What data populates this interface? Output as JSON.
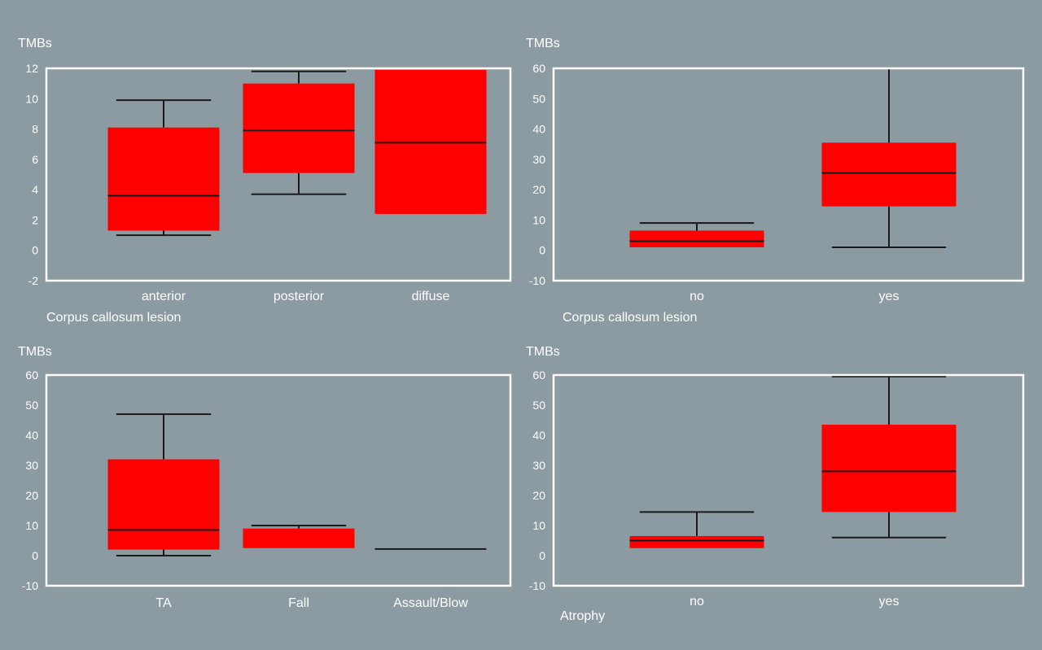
{
  "colors": {
    "background": "#8c9ba1",
    "box_fill": "#ff0000",
    "frame": "#ffffff",
    "text": "#ffffff",
    "lines": "#1a1a1a"
  },
  "chart_data": [
    {
      "type": "box",
      "title": "",
      "ylabel": "TMBs",
      "xlabel": "Corpus callosum lesion",
      "ylim": [
        -2,
        12
      ],
      "yticks": [
        -2,
        0,
        2,
        4,
        6,
        8,
        10,
        12
      ],
      "grid": false,
      "categories": [
        "anterior",
        "posterior",
        "diffuse"
      ],
      "boxes": [
        {
          "category": "anterior",
          "whisker_low": 1,
          "q1": 1.3,
          "median": 3.6,
          "q3": 8.1,
          "whisker_high": 9.9
        },
        {
          "category": "posterior",
          "whisker_low": 3.7,
          "q1": 5.1,
          "median": 7.9,
          "q3": 11,
          "whisker_high": 11.8
        },
        {
          "category": "diffuse",
          "whisker_low": null,
          "q1": 2.4,
          "median": 7.1,
          "q3": 11.9,
          "whisker_high": null
        }
      ]
    },
    {
      "type": "box",
      "title": "",
      "ylabel": "TMBs",
      "xlabel": "Corpus callosum lesion",
      "ylim": [
        -10,
        60
      ],
      "yticks": [
        -10,
        0,
        10,
        20,
        30,
        40,
        50,
        60
      ],
      "grid": false,
      "categories": [
        "no",
        "yes"
      ],
      "boxes": [
        {
          "category": "no",
          "whisker_low": null,
          "q1": 1,
          "median": 3,
          "q3": 6.5,
          "whisker_high": 9
        },
        {
          "category": "yes",
          "whisker_low": 1,
          "q1": 14.5,
          "median": 25.5,
          "q3": 35.5,
          "whisker_high": 60
        }
      ]
    },
    {
      "type": "box",
      "title": "",
      "ylabel": "TMBs",
      "xlabel": "",
      "ylim": [
        -10,
        60
      ],
      "yticks": [
        -10,
        0,
        10,
        20,
        30,
        40,
        50,
        60
      ],
      "grid": false,
      "categories": [
        "TA",
        "Fall",
        "Assault/Blow"
      ],
      "boxes": [
        {
          "category": "TA",
          "whisker_low": 0,
          "q1": 2,
          "median": 8.5,
          "q3": 32,
          "whisker_high": 47
        },
        {
          "category": "Fall",
          "whisker_low": null,
          "q1": 2.5,
          "median": null,
          "q3": 9,
          "whisker_high": 10
        },
        {
          "category": "Assault/Blow",
          "whisker_low": null,
          "q1": 2.2,
          "median": 2.2,
          "q3": 2.2,
          "whisker_high": null
        }
      ]
    },
    {
      "type": "box",
      "title": "",
      "ylabel": "TMBs",
      "xlabel": "Atrophy",
      "ylim": [
        -10,
        60
      ],
      "yticks": [
        -10,
        0,
        10,
        20,
        30,
        40,
        50,
        60
      ],
      "grid": false,
      "categories": [
        "no",
        "yes"
      ],
      "boxes": [
        {
          "category": "no",
          "whisker_low": null,
          "q1": 2.5,
          "median": 5,
          "q3": 6.5,
          "whisker_high": 14.5
        },
        {
          "category": "yes",
          "whisker_low": 6,
          "q1": 14.5,
          "median": 28,
          "q3": 43.5,
          "whisker_high": 59.5
        }
      ]
    }
  ]
}
